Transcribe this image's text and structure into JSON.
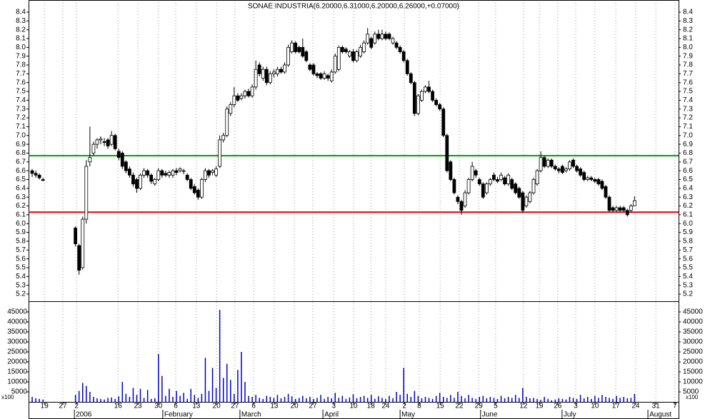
{
  "chart_data": {
    "type": "candlestick",
    "title": "SONAE INDUSTRIA(6.20000,6.31000,6.20000,6.26000,+0.07000)",
    "x": [
      1,
      2,
      3,
      4,
      13,
      14,
      15,
      16,
      17,
      18,
      19,
      20,
      21,
      22,
      23,
      24,
      25,
      26,
      27,
      28,
      29,
      30,
      31,
      32,
      33,
      34,
      35,
      36,
      37,
      38,
      39,
      40,
      41,
      42,
      43,
      44,
      45,
      46,
      47,
      48,
      49,
      50,
      51,
      52,
      53,
      54,
      55,
      56,
      57,
      58,
      59,
      60,
      61,
      62,
      63,
      64,
      65,
      66,
      67,
      68,
      69,
      70,
      71,
      72,
      73,
      74,
      75,
      76,
      77,
      78,
      79,
      80,
      81,
      82,
      83,
      84,
      85,
      86,
      87,
      88,
      89,
      90,
      91,
      92,
      93,
      94,
      95,
      96,
      97,
      98,
      99,
      100,
      101,
      102,
      103,
      104,
      105,
      106,
      107,
      108,
      109,
      110,
      111,
      112,
      113,
      114,
      115,
      116,
      117,
      118,
      119,
      120,
      121,
      122,
      123,
      124,
      125,
      126,
      127,
      128,
      129,
      130,
      131,
      132,
      133,
      134,
      135,
      136,
      137,
      138,
      139,
      140,
      141,
      142,
      143,
      144,
      145,
      146,
      147,
      148,
      149,
      150,
      151,
      152,
      153,
      154,
      155,
      156,
      157,
      158,
      159,
      160,
      161,
      162,
      163,
      164,
      165,
      166,
      167,
      168
    ],
    "ohlc": [
      [
        6.6,
        6.62,
        6.53,
        6.57
      ],
      [
        6.57,
        6.6,
        6.52,
        6.55
      ],
      [
        6.55,
        6.57,
        6.5,
        6.52
      ],
      [
        6.5,
        6.52,
        6.48,
        6.49
      ],
      [
        5.95,
        5.97,
        5.74,
        5.77
      ],
      [
        5.75,
        5.77,
        5.42,
        5.47
      ],
      [
        5.5,
        6.08,
        5.48,
        6.05
      ],
      [
        6.05,
        6.72,
        6.0,
        6.65
      ],
      [
        6.7,
        7.1,
        6.65,
        6.75
      ],
      [
        6.8,
        6.93,
        6.77,
        6.9
      ],
      [
        6.9,
        6.97,
        6.85,
        6.95
      ],
      [
        6.95,
        6.99,
        6.9,
        6.96
      ],
      [
        6.93,
        6.97,
        6.88,
        6.92
      ],
      [
        6.95,
        6.97,
        6.85,
        6.88
      ],
      [
        6.9,
        7.05,
        6.88,
        7.0
      ],
      [
        7.0,
        7.02,
        6.83,
        6.85
      ],
      [
        6.82,
        6.85,
        6.72,
        6.75
      ],
      [
        6.8,
        6.82,
        6.62,
        6.65
      ],
      [
        6.7,
        6.72,
        6.57,
        6.6
      ],
      [
        6.62,
        6.65,
        6.52,
        6.55
      ],
      [
        6.55,
        6.58,
        6.42,
        6.45
      ],
      [
        6.5,
        6.52,
        6.35,
        6.4
      ],
      [
        6.4,
        6.57,
        6.38,
        6.55
      ],
      [
        6.55,
        6.63,
        6.52,
        6.6
      ],
      [
        6.6,
        6.62,
        6.52,
        6.55
      ],
      [
        6.55,
        6.57,
        6.45,
        6.48
      ],
      [
        6.45,
        6.52,
        6.43,
        6.5
      ],
      [
        6.5,
        6.63,
        6.48,
        6.6
      ],
      [
        6.6,
        6.62,
        6.52,
        6.55
      ],
      [
        6.57,
        6.6,
        6.53,
        6.55
      ],
      [
        6.55,
        6.6,
        6.52,
        6.58
      ],
      [
        6.55,
        6.62,
        6.52,
        6.6
      ],
      [
        6.6,
        6.63,
        6.55,
        6.58
      ],
      [
        6.6,
        6.64,
        6.58,
        6.62
      ],
      [
        6.6,
        6.62,
        6.56,
        6.6
      ],
      [
        6.55,
        6.57,
        6.48,
        6.5
      ],
      [
        6.5,
        6.52,
        6.38,
        6.4
      ],
      [
        6.42,
        6.45,
        6.33,
        6.35
      ],
      [
        6.38,
        6.4,
        6.27,
        6.3
      ],
      [
        6.3,
        6.52,
        6.28,
        6.5
      ],
      [
        6.5,
        6.63,
        6.47,
        6.6
      ],
      [
        6.6,
        6.62,
        6.52,
        6.55
      ],
      [
        6.58,
        6.62,
        6.55,
        6.6
      ],
      [
        6.55,
        6.65,
        6.53,
        6.62
      ],
      [
        6.65,
        7.0,
        6.63,
        6.95
      ],
      [
        6.95,
        7.03,
        6.92,
        7.0
      ],
      [
        7.0,
        7.33,
        6.98,
        7.3
      ],
      [
        7.25,
        7.38,
        7.22,
        7.35
      ],
      [
        7.35,
        7.55,
        7.32,
        7.45
      ],
      [
        7.45,
        7.48,
        7.38,
        7.4
      ],
      [
        7.42,
        7.48,
        7.4,
        7.45
      ],
      [
        7.45,
        7.52,
        7.42,
        7.5
      ],
      [
        7.5,
        7.53,
        7.43,
        7.45
      ],
      [
        7.45,
        7.58,
        7.43,
        7.55
      ],
      [
        7.55,
        7.85,
        7.52,
        7.75
      ],
      [
        7.8,
        7.83,
        7.67,
        7.7
      ],
      [
        7.65,
        7.78,
        7.62,
        7.75
      ],
      [
        7.75,
        7.78,
        7.57,
        7.6
      ],
      [
        7.6,
        7.73,
        7.58,
        7.7
      ],
      [
        7.7,
        7.75,
        7.66,
        7.72
      ],
      [
        7.7,
        7.78,
        7.67,
        7.75
      ],
      [
        7.75,
        7.78,
        7.7,
        7.72
      ],
      [
        7.72,
        7.83,
        7.7,
        7.8
      ],
      [
        7.8,
        8.03,
        7.78,
        8.0
      ],
      [
        7.95,
        8.08,
        7.93,
        8.05
      ],
      [
        8.05,
        8.07,
        7.93,
        7.95
      ],
      [
        8.0,
        8.02,
        7.93,
        7.95
      ],
      [
        8.0,
        8.1,
        7.88,
        7.9
      ],
      [
        7.95,
        7.97,
        7.83,
        7.85
      ],
      [
        7.8,
        7.82,
        7.73,
        7.75
      ],
      [
        7.8,
        7.82,
        7.68,
        7.7
      ],
      [
        7.7,
        7.72,
        7.65,
        7.68
      ],
      [
        7.7,
        7.72,
        7.63,
        7.65
      ],
      [
        7.65,
        7.73,
        7.63,
        7.7
      ],
      [
        7.68,
        7.7,
        7.62,
        7.65
      ],
      [
        7.62,
        7.75,
        7.6,
        7.72
      ],
      [
        7.72,
        7.93,
        7.7,
        7.9
      ],
      [
        7.75,
        8.02,
        7.73,
        8.0
      ],
      [
        8.0,
        8.02,
        7.93,
        7.95
      ],
      [
        7.98,
        8.0,
        7.93,
        7.95
      ],
      [
        7.9,
        7.97,
        7.88,
        7.95
      ],
      [
        7.95,
        7.98,
        7.83,
        7.85
      ],
      [
        7.85,
        7.97,
        7.83,
        7.95
      ],
      [
        7.9,
        8.03,
        7.88,
        8.0
      ],
      [
        7.95,
        8.08,
        7.93,
        8.05
      ],
      [
        8.05,
        8.22,
        8.03,
        8.15
      ],
      [
        8.1,
        8.12,
        7.98,
        8.0
      ],
      [
        8.05,
        8.18,
        8.03,
        8.15
      ],
      [
        8.15,
        8.2,
        8.08,
        8.1
      ],
      [
        8.1,
        8.2,
        8.08,
        8.15
      ],
      [
        8.15,
        8.18,
        8.08,
        8.1
      ],
      [
        8.15,
        8.17,
        8.08,
        8.1
      ],
      [
        8.05,
        8.12,
        8.03,
        8.1
      ],
      [
        8.05,
        8.07,
        7.98,
        8.0
      ],
      [
        8.0,
        8.02,
        7.93,
        7.95
      ],
      [
        7.95,
        7.97,
        7.83,
        7.85
      ],
      [
        7.85,
        7.87,
        7.68,
        7.7
      ],
      [
        7.7,
        7.72,
        7.58,
        7.6
      ],
      [
        7.6,
        7.62,
        7.22,
        7.25
      ],
      [
        7.25,
        7.47,
        7.23,
        7.45
      ],
      [
        7.4,
        7.52,
        7.38,
        7.5
      ],
      [
        7.5,
        7.57,
        7.48,
        7.55
      ],
      [
        7.55,
        7.62,
        7.48,
        7.5
      ],
      [
        7.5,
        7.52,
        7.38,
        7.4
      ],
      [
        7.4,
        7.42,
        7.33,
        7.35
      ],
      [
        7.35,
        7.37,
        7.28,
        7.3
      ],
      [
        7.3,
        7.32,
        6.98,
        7.0
      ],
      [
        7.0,
        7.02,
        6.58,
        6.6
      ],
      [
        6.7,
        6.72,
        6.48,
        6.5
      ],
      [
        6.5,
        6.52,
        6.33,
        6.35
      ],
      [
        6.3,
        6.32,
        6.22,
        6.25
      ],
      [
        6.25,
        6.27,
        6.1,
        6.15
      ],
      [
        6.2,
        6.38,
        6.18,
        6.35
      ],
      [
        6.35,
        6.52,
        6.33,
        6.5
      ],
      [
        6.5,
        6.7,
        6.48,
        6.65
      ],
      [
        6.6,
        6.62,
        6.52,
        6.55
      ],
      [
        6.5,
        6.52,
        6.43,
        6.45
      ],
      [
        6.45,
        6.47,
        6.28,
        6.3
      ],
      [
        6.35,
        6.47,
        6.33,
        6.45
      ],
      [
        6.45,
        6.52,
        6.43,
        6.5
      ],
      [
        6.55,
        6.58,
        6.48,
        6.5
      ],
      [
        6.5,
        6.53,
        6.46,
        6.48
      ],
      [
        6.5,
        6.58,
        6.48,
        6.55
      ],
      [
        6.52,
        6.54,
        6.43,
        6.45
      ],
      [
        6.45,
        6.57,
        6.43,
        6.55
      ],
      [
        6.5,
        6.52,
        6.38,
        6.4
      ],
      [
        6.45,
        6.47,
        6.33,
        6.35
      ],
      [
        6.4,
        6.42,
        6.28,
        6.3
      ],
      [
        6.35,
        6.37,
        6.12,
        6.15
      ],
      [
        6.2,
        6.32,
        6.18,
        6.3
      ],
      [
        6.25,
        6.37,
        6.23,
        6.35
      ],
      [
        6.35,
        6.52,
        6.33,
        6.5
      ],
      [
        6.45,
        6.62,
        6.43,
        6.6
      ],
      [
        6.6,
        6.82,
        6.58,
        6.75
      ],
      [
        6.75,
        6.77,
        6.63,
        6.65
      ],
      [
        6.65,
        6.74,
        6.63,
        6.72
      ],
      [
        6.72,
        6.74,
        6.63,
        6.65
      ],
      [
        6.65,
        6.67,
        6.6,
        6.62
      ],
      [
        6.62,
        6.64,
        6.57,
        6.6
      ],
      [
        6.65,
        6.67,
        6.56,
        6.58
      ],
      [
        6.6,
        6.64,
        6.58,
        6.62
      ],
      [
        6.62,
        6.72,
        6.6,
        6.7
      ],
      [
        6.72,
        6.74,
        6.63,
        6.65
      ],
      [
        6.65,
        6.67,
        6.58,
        6.6
      ],
      [
        6.62,
        6.64,
        6.53,
        6.55
      ],
      [
        6.58,
        6.6,
        6.48,
        6.5
      ],
      [
        6.5,
        6.54,
        6.48,
        6.52
      ],
      [
        6.52,
        6.54,
        6.48,
        6.5
      ],
      [
        6.5,
        6.52,
        6.46,
        6.48
      ],
      [
        6.5,
        6.52,
        6.43,
        6.45
      ],
      [
        6.48,
        6.5,
        6.38,
        6.4
      ],
      [
        6.42,
        6.44,
        6.28,
        6.3
      ],
      [
        6.3,
        6.32,
        6.13,
        6.15
      ],
      [
        6.18,
        6.2,
        6.13,
        6.15
      ],
      [
        6.15,
        6.2,
        6.13,
        6.18
      ],
      [
        6.18,
        6.2,
        6.13,
        6.15
      ],
      [
        6.18,
        6.2,
        6.13,
        6.15
      ],
      [
        6.15,
        6.17,
        6.08,
        6.1
      ],
      [
        6.15,
        6.22,
        6.13,
        6.2
      ],
      [
        6.2,
        6.31,
        6.2,
        6.26
      ]
    ],
    "volume": [
      2500,
      1800,
      1500,
      1200,
      3500,
      5500,
      9500,
      8000,
      5000,
      2500,
      1800,
      1500,
      1200,
      2000,
      2200,
      1500,
      2800,
      10000,
      4000,
      2500,
      7000,
      3500,
      6500,
      2000,
      6000,
      1500,
      1800,
      24000,
      13000,
      3000,
      6500,
      2500,
      5500,
      3000,
      4500,
      1500,
      6500,
      3500,
      2000,
      4000,
      22000,
      5500,
      17000,
      7000,
      46000,
      12000,
      19000,
      11000,
      4000,
      16000,
      25000,
      10000,
      3000,
      2500,
      3500,
      2000,
      1500,
      3000,
      2500,
      2000,
      3500,
      1800,
      2500,
      4000,
      2800,
      1500,
      2000,
      3000,
      1800,
      2500,
      1500,
      2000,
      3500,
      1500,
      2500,
      1800,
      4500,
      2000,
      3000,
      1500,
      2200,
      3800,
      1800,
      2500,
      3000,
      2000,
      3500,
      1500,
      2800,
      2000,
      1500,
      3000,
      1800,
      5000,
      3500,
      17000,
      4000,
      2500,
      5500,
      3000,
      1800,
      2500,
      2000,
      1500,
      3000,
      4500,
      2500,
      2000,
      3500,
      2000,
      5000,
      3000,
      1800,
      3500,
      2000,
      1500,
      2500,
      3000,
      1800,
      2500,
      2000,
      1500,
      3000,
      1800,
      2500,
      2000,
      3500,
      2000,
      7000,
      2500,
      1800,
      2000,
      1500,
      1000,
      2500,
      1500,
      800,
      1200,
      1800,
      1500,
      1200,
      2500,
      2000,
      1500,
      3500,
      1800,
      2500,
      1500,
      3000,
      2000,
      3500,
      2500,
      2000,
      1500,
      3000,
      2000,
      2500,
      1800,
      2000,
      4000
    ],
    "xlim": [
      0,
      180.2
    ],
    "ylim": [
      5.119,
      8.505
    ],
    "yticks": [
      5.2,
      5.3,
      5.4,
      5.5,
      5.6,
      5.7,
      5.8,
      5.9,
      {
        "value": 6,
        "label": "6.0"
      },
      6.1,
      6.2,
      6.3,
      6.4,
      6.5,
      6.6,
      6.7,
      6.8,
      6.9,
      {
        "value": 7,
        "label": "7.0"
      },
      7.1,
      7.2,
      7.3,
      7.4,
      7.5,
      7.6,
      7.7,
      7.8,
      7.9,
      {
        "value": 8,
        "label": "8.0"
      },
      8.1,
      8.2,
      8.3,
      8.4
    ],
    "volume_ylim": [
      0,
      50360
    ],
    "volume_yticks": [
      5000,
      10000,
      15000,
      20000,
      25000,
      30000,
      35000,
      40000,
      45000
    ],
    "volume_unit": "x100",
    "xticks": [
      {
        "value": 4.4,
        "label": "19"
      },
      {
        "value": 9.5,
        "label": "27"
      },
      {
        "value": 13.3,
        "label": "2"
      },
      {
        "value": 24.8,
        "label": "16"
      },
      {
        "value": 30.3,
        "label": "23"
      },
      {
        "value": 36,
        "label": "30"
      },
      {
        "value": 40.8,
        "label": "6"
      },
      {
        "value": 46.5,
        "label": "13"
      },
      {
        "value": 52.1,
        "label": "20"
      },
      {
        "value": 57.2,
        "label": "27"
      },
      {
        "value": 62.4,
        "label": "6"
      },
      {
        "value": 68.1,
        "label": "13"
      },
      {
        "value": 73.7,
        "label": "20"
      },
      {
        "value": 78.8,
        "label": "27"
      },
      {
        "value": 84.6,
        "label": "3"
      },
      {
        "value": 90.1,
        "label": "10"
      },
      {
        "value": 94.9,
        "label": "18"
      },
      {
        "value": 99,
        "label": "24"
      },
      {
        "value": 104.2,
        "label": "2"
      },
      {
        "value": 108.3,
        "label": "8"
      },
      {
        "value": 114.1,
        "label": "15"
      },
      {
        "value": 119.4,
        "label": "22"
      },
      {
        "value": 124.8,
        "label": "29"
      },
      {
        "value": 129.5,
        "label": "5"
      },
      {
        "value": 137.2,
        "label": "12"
      },
      {
        "value": 141.6,
        "label": "19"
      },
      {
        "value": 146.7,
        "label": "26"
      },
      {
        "value": 151.7,
        "label": "3"
      },
      {
        "value": 157,
        "label": "10"
      },
      {
        "value": 162.8,
        "label": "17"
      },
      {
        "value": 168.3,
        "label": "24"
      },
      {
        "value": 173.9,
        "label": "31"
      },
      {
        "value": 179.2,
        "label": "7"
      }
    ],
    "month_labels": [
      {
        "value": 12.7,
        "label": "2006"
      },
      {
        "value": 37.2,
        "label": "February"
      },
      {
        "value": 58.6,
        "label": "March"
      },
      {
        "value": 81.6,
        "label": "April"
      },
      {
        "value": 103,
        "label": "May"
      },
      {
        "value": 125.3,
        "label": "June"
      },
      {
        "value": 147.9,
        "label": "July"
      },
      {
        "value": 171.7,
        "label": "August"
      }
    ],
    "hlines": [
      {
        "value": 6.77,
        "color": "#00a000"
      },
      {
        "value": 6.13,
        "color": "#e00000"
      }
    ],
    "up_color": "#ffffff",
    "down_color": "#000000",
    "volume_color": "#0000cc",
    "grid": true
  }
}
